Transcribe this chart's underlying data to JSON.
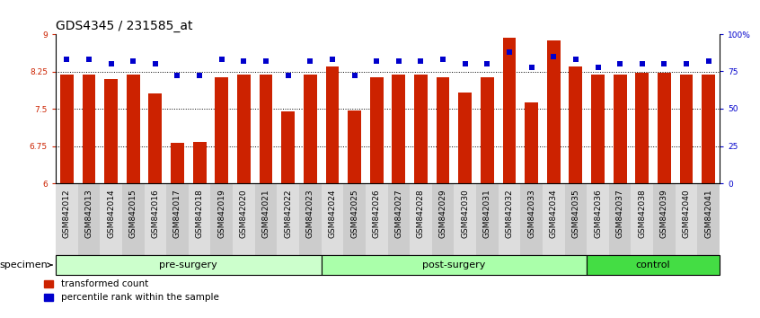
{
  "title": "GDS4345 / 231585_at",
  "samples": [
    "GSM842012",
    "GSM842013",
    "GSM842014",
    "GSM842015",
    "GSM842016",
    "GSM842017",
    "GSM842018",
    "GSM842019",
    "GSM842020",
    "GSM842021",
    "GSM842022",
    "GSM842023",
    "GSM842024",
    "GSM842025",
    "GSM842026",
    "GSM842027",
    "GSM842028",
    "GSM842029",
    "GSM842030",
    "GSM842031",
    "GSM842032",
    "GSM842033",
    "GSM842034",
    "GSM842035",
    "GSM842036",
    "GSM842037",
    "GSM842038",
    "GSM842039",
    "GSM842040",
    "GSM842041"
  ],
  "bar_values": [
    8.19,
    8.18,
    8.1,
    8.19,
    7.81,
    6.82,
    6.84,
    8.13,
    8.19,
    8.19,
    7.45,
    8.19,
    8.35,
    7.47,
    8.14,
    8.19,
    8.18,
    8.13,
    7.82,
    8.13,
    8.92,
    7.63,
    8.88,
    8.35,
    8.19,
    8.19,
    8.22,
    8.22,
    8.18,
    8.18
  ],
  "blue_values": [
    83,
    83,
    80,
    82,
    80,
    72,
    72,
    83,
    82,
    82,
    72,
    82,
    83,
    72,
    82,
    82,
    82,
    83,
    80,
    80,
    88,
    78,
    85,
    83,
    78,
    80,
    80,
    80,
    80,
    82
  ],
  "group_display": [
    {
      "label": "pre-surgery",
      "start": 0,
      "end": 12,
      "color": "#CCFFCC"
    },
    {
      "label": "post-surgery",
      "start": 12,
      "end": 24,
      "color": "#AAFFAA"
    },
    {
      "label": "control",
      "start": 24,
      "end": 30,
      "color": "#44DD44"
    }
  ],
  "ylim_left": [
    6,
    9
  ],
  "ylim_right": [
    0,
    100
  ],
  "yticks_left": [
    6,
    6.75,
    7.5,
    8.25,
    9
  ],
  "yticks_right": [
    0,
    25,
    50,
    75,
    100
  ],
  "ytick_labels_right": [
    "0",
    "25",
    "50",
    "75",
    "100%"
  ],
  "hlines": [
    6.75,
    7.5,
    8.25
  ],
  "bar_color": "#CC2200",
  "dot_color": "#0000CC",
  "bg_color": "#FFFFFF",
  "plot_bg": "#FFFFFF",
  "title_fontsize": 10,
  "tick_fontsize": 6.5,
  "group_fontsize": 8,
  "legend_items": [
    {
      "color": "#CC2200",
      "label": "transformed count"
    },
    {
      "color": "#0000CC",
      "label": "percentile rank within the sample"
    }
  ]
}
